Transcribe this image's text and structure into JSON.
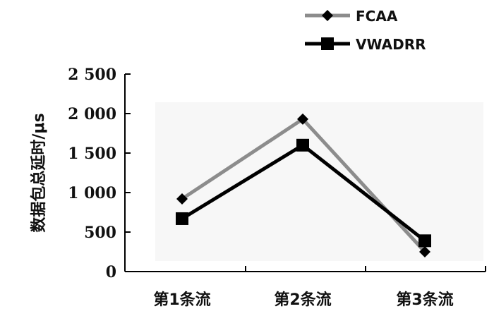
{
  "chart_data": {
    "type": "line",
    "title": "",
    "xlabel": "",
    "ylabel": "数据包总延时/μs",
    "categories": [
      "第1条流",
      "第2条流",
      "第3条流"
    ],
    "ylim": [
      0,
      2500
    ],
    "yticks": [
      0,
      500,
      1000,
      1500,
      2000,
      2500
    ],
    "ytick_labels": [
      "0",
      "500",
      "1 000",
      "1 500",
      "2 000",
      "2 500"
    ],
    "grid": false,
    "legend_position": "top-right",
    "series": [
      {
        "name": "FCAA",
        "values": [
          920,
          1930,
          250
        ],
        "color": "#8c8c8c",
        "marker": "diamond"
      },
      {
        "name": "VWADRR",
        "values": [
          670,
          1600,
          390
        ],
        "color": "#000000",
        "marker": "square"
      }
    ]
  }
}
